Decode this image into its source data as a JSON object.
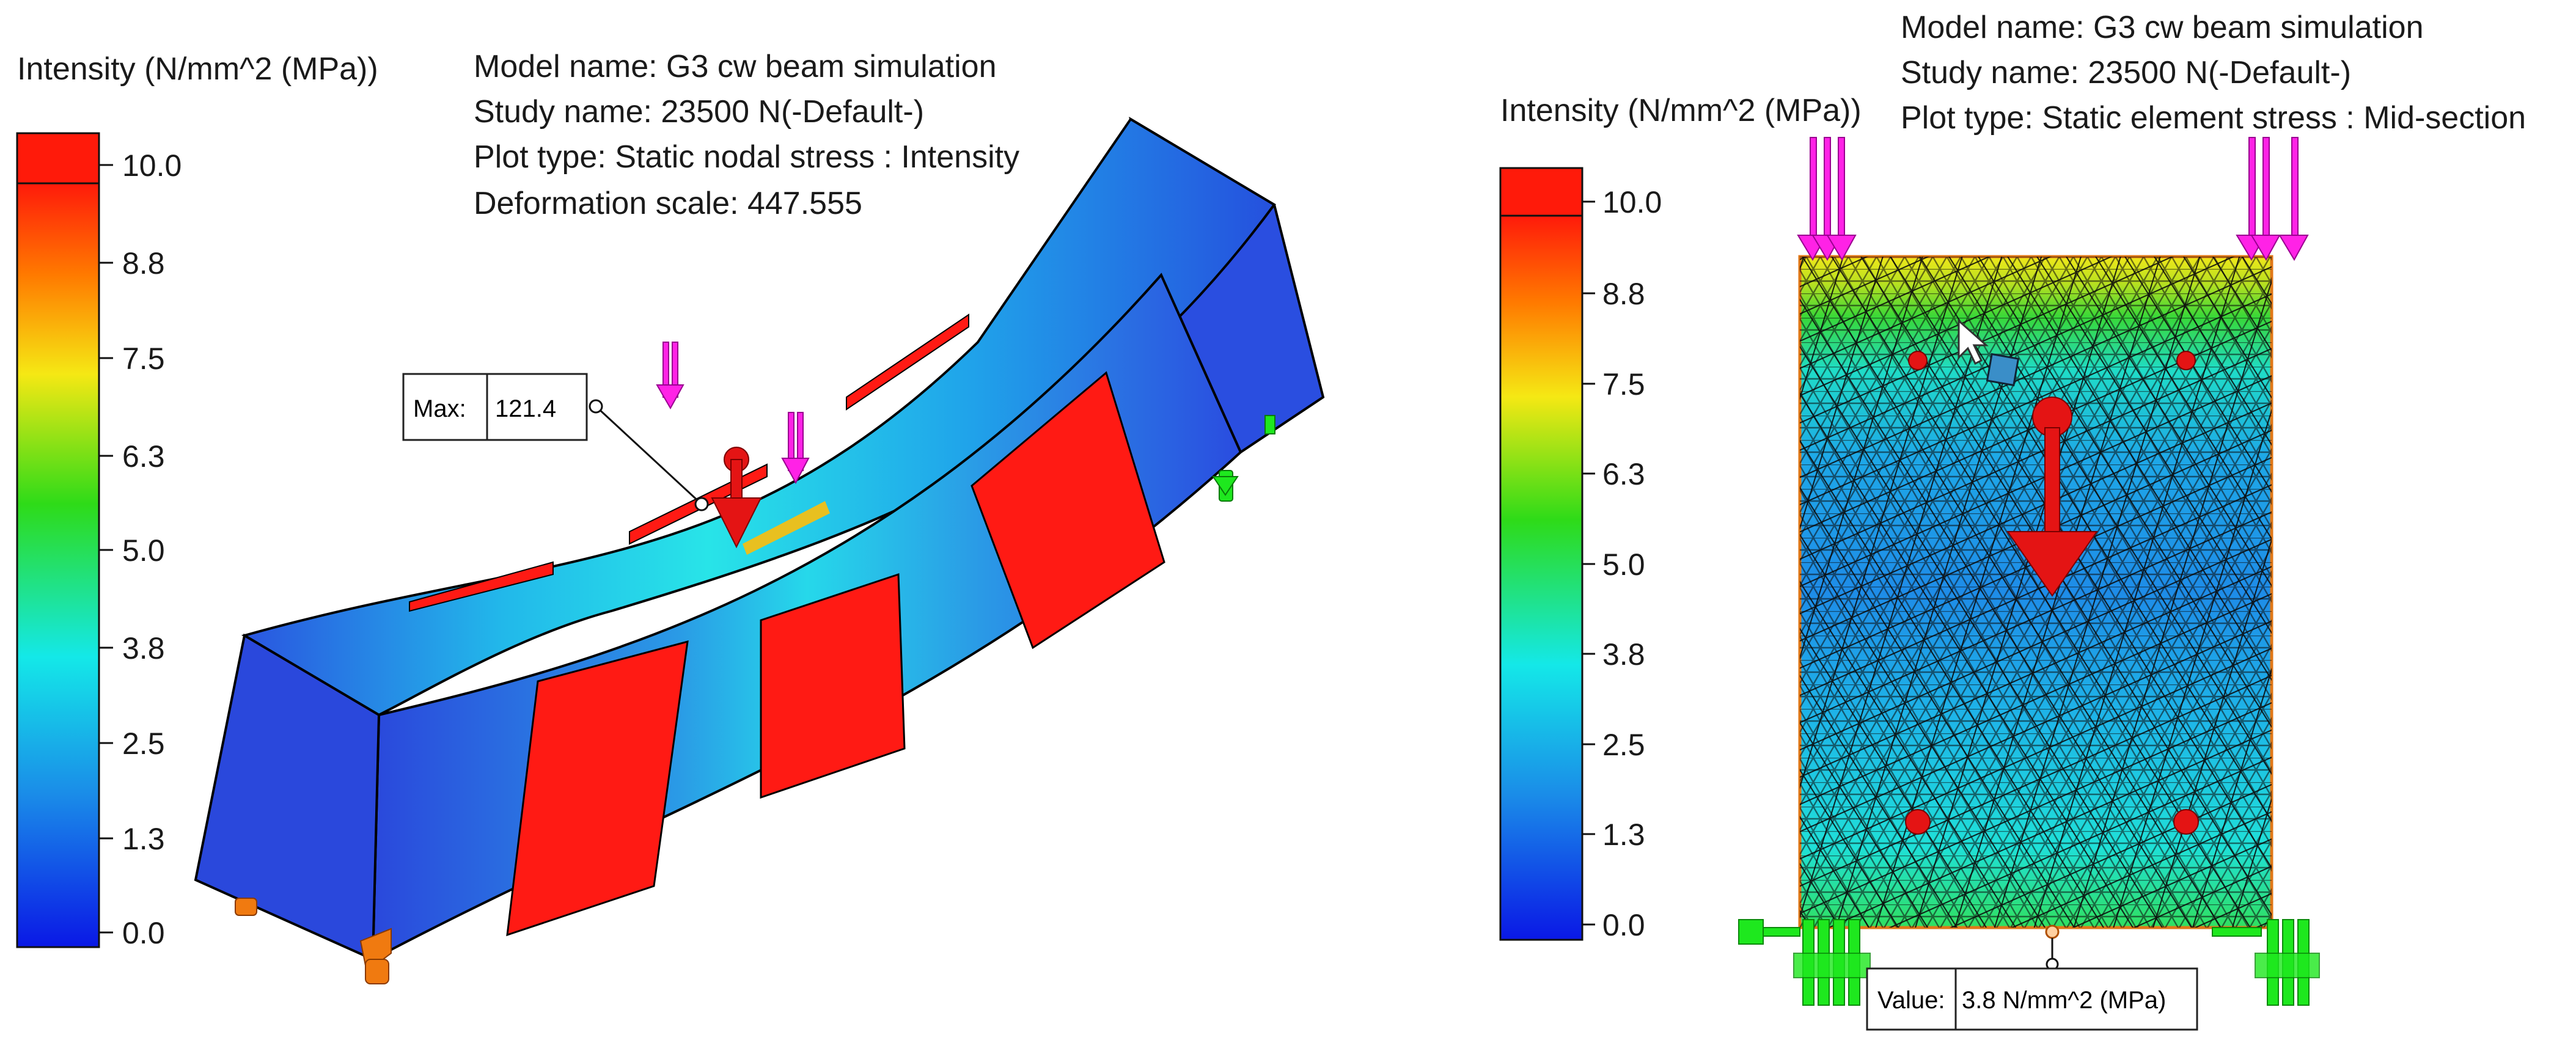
{
  "left_panel": {
    "legend_title": "Intensity (N/mm^2 (MPa))",
    "legend_ticks": [
      "10.0",
      "8.8",
      "7.5",
      "6.3",
      "5.0",
      "3.8",
      "2.5",
      "1.3",
      "0.0"
    ],
    "model_name": "Model name: G3 cw beam simulation",
    "study_name": "Study name: 23500 N(-Default-)",
    "plot_type": "Plot type: Static nodal stress : Intensity",
    "deformation_scale": "Deformation scale: 447.555",
    "probe_label": "Max:",
    "probe_value": "121.4"
  },
  "right_panel": {
    "legend_title": "Intensity (N/mm^2 (MPa))",
    "legend_ticks": [
      "10.0",
      "8.8",
      "7.5",
      "6.3",
      "5.0",
      "3.8",
      "2.5",
      "1.3",
      "0.0"
    ],
    "model_name": "Model name: G3 cw beam simulation",
    "study_name": "Study name: 23500 N(-Default-)",
    "plot_type": "Plot type: Static element stress : Mid-section",
    "probe_label": "Value:",
    "probe_value": "3.8 N/mm^2 (MPa)"
  },
  "colors": {
    "max_red": "#ff1a1a",
    "blue": "#1e3fdc",
    "cyan": "#1fe6e6",
    "green": "#22d622",
    "yellow": "#f2ea1a",
    "load_magenta": "#ff22e6",
    "fixture_green": "#1ee81e",
    "fixture_orange": "#f07a10"
  },
  "icons": [
    "load-arrow-icon",
    "fixture-icon",
    "cursor-icon",
    "gravity-arrow-icon"
  ]
}
